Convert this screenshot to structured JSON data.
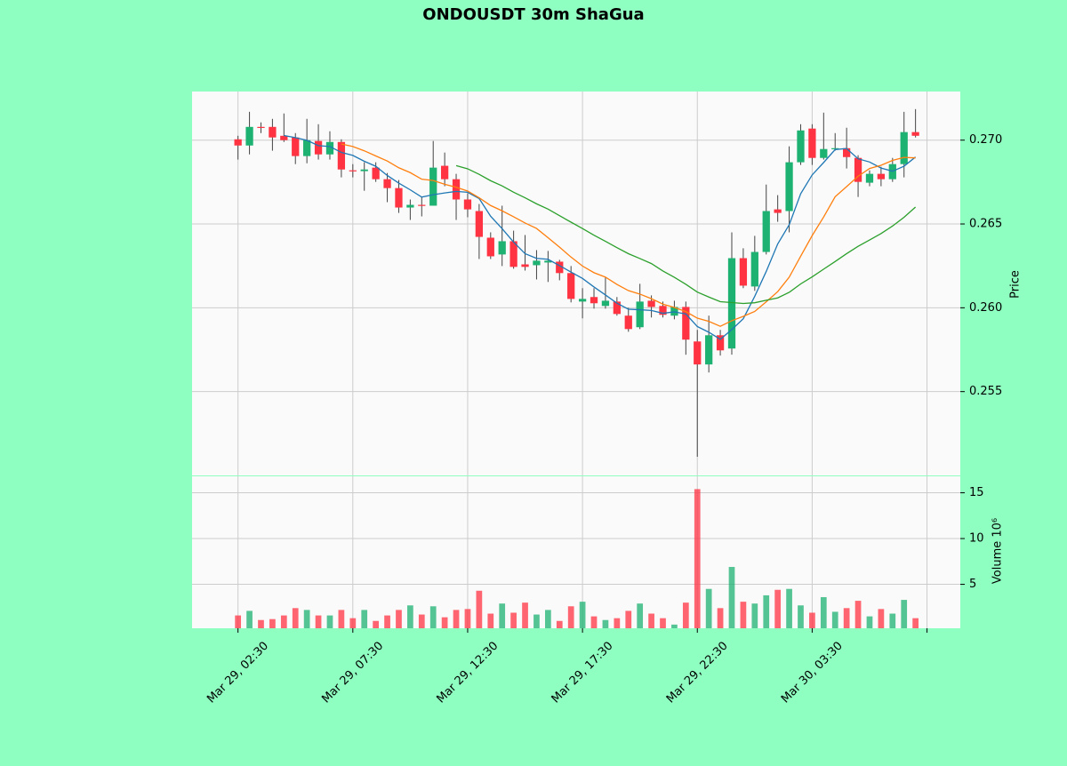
{
  "chart_data": {
    "type": "candlestick",
    "title": "ONDOUSDT 30m ShaGua",
    "ylabel": "Price",
    "volume_ylabel": "Volume  10⁶",
    "open": [
      0.27005,
      0.26968,
      0.27079,
      0.27079,
      0.27026,
      0.27016,
      0.26905,
      0.26995,
      0.26915,
      0.26989,
      0.2682,
      0.26815,
      0.26836,
      0.26767,
      0.26714,
      0.26598,
      0.26614,
      0.26609,
      0.26847,
      0.26767,
      0.26646,
      0.26577,
      0.26418,
      0.26318,
      0.26397,
      0.26259,
      0.26254,
      0.2627,
      0.26275,
      0.26207,
      0.26037,
      0.26064,
      0.26011,
      0.26037,
      0.25953,
      0.25884,
      0.26042,
      0.26011,
      0.25953,
      0.26005,
      0.25799,
      0.25662,
      0.25836,
      0.25757,
      0.26296,
      0.26127,
      0.26333,
      0.26587,
      0.26577,
      0.26868,
      0.27069,
      0.26894,
      0.26947,
      0.26952,
      0.26894,
      0.26746,
      0.26799,
      0.26767,
      0.26857,
      0.27048
    ],
    "high": [
      0.27026,
      0.27169,
      0.27106,
      0.27127,
      0.27159,
      0.27042,
      0.27127,
      0.27095,
      0.27053,
      0.27005,
      0.26857,
      0.26868,
      0.26868,
      0.26804,
      0.26762,
      0.26646,
      0.26661,
      0.26995,
      0.26926,
      0.26799,
      0.26683,
      0.26619,
      0.2645,
      0.26609,
      0.2646,
      0.26434,
      0.26344,
      0.26339,
      0.26286,
      0.26249,
      0.26117,
      0.26117,
      0.26185,
      0.26064,
      0.26,
      0.26143,
      0.26074,
      0.26037,
      0.26042,
      0.26037,
      0.25868,
      0.25953,
      0.25868,
      0.2645,
      0.26355,
      0.26429,
      0.26735,
      0.26672,
      0.26963,
      0.27095,
      0.27095,
      0.27164,
      0.27042,
      0.27074,
      0.2691,
      0.2682,
      0.26841,
      0.26894,
      0.27169,
      0.27185
    ],
    "low": [
      0.26884,
      0.26915,
      0.27042,
      0.26937,
      0.26989,
      0.26857,
      0.26862,
      0.26884,
      0.26884,
      0.26778,
      0.26778,
      0.26698,
      0.26751,
      0.2663,
      0.26566,
      0.26524,
      0.26545,
      0.26609,
      0.26725,
      0.26524,
      0.2654,
      0.26291,
      0.26291,
      0.26249,
      0.26233,
      0.26222,
      0.26169,
      0.26154,
      0.26164,
      0.26032,
      0.25937,
      0.25995,
      0.25995,
      0.25953,
      0.25857,
      0.25873,
      0.25942,
      0.25942,
      0.25931,
      0.2572,
      0.25111,
      0.25614,
      0.25715,
      0.2572,
      0.26117,
      0.26101,
      0.26318,
      0.26513,
      0.2645,
      0.26852,
      0.26852,
      0.26884,
      0.26937,
      0.26831,
      0.26661,
      0.26725,
      0.26725,
      0.26751,
      0.26778,
      0.27016
    ],
    "close": [
      0.26968,
      0.27079,
      0.27074,
      0.27016,
      0.27,
      0.26905,
      0.27,
      0.26915,
      0.26989,
      0.26825,
      0.26815,
      0.26825,
      0.26767,
      0.26714,
      0.26598,
      0.26614,
      0.26609,
      0.26836,
      0.26767,
      0.26646,
      0.26587,
      0.26423,
      0.26307,
      0.26397,
      0.26244,
      0.26244,
      0.26281,
      0.26281,
      0.26207,
      0.26053,
      0.26053,
      0.26027,
      0.26042,
      0.25963,
      0.25873,
      0.26037,
      0.26005,
      0.25958,
      0.26005,
      0.2581,
      0.25662,
      0.25836,
      0.25746,
      0.26296,
      0.26132,
      0.26333,
      0.26577,
      0.26566,
      0.26868,
      0.27058,
      0.26894,
      0.26947,
      0.26952,
      0.26899,
      0.26751,
      0.26799,
      0.26767,
      0.26857,
      0.27048,
      0.27026
    ],
    "volume": [
      1.6,
      2.1,
      1.1,
      1.2,
      1.6,
      2.4,
      2.2,
      1.6,
      1.6,
      2.2,
      1.3,
      2.2,
      1.0,
      1.6,
      2.2,
      2.7,
      1.7,
      2.6,
      1.4,
      2.2,
      2.3,
      4.3,
      1.8,
      2.9,
      1.9,
      3.0,
      1.7,
      2.2,
      1.0,
      2.6,
      3.1,
      1.5,
      1.1,
      1.3,
      2.1,
      2.9,
      1.8,
      1.3,
      0.6,
      3.0,
      15.4,
      4.5,
      2.4,
      6.9,
      3.1,
      2.9,
      3.8,
      4.4,
      4.5,
      2.7,
      1.9,
      3.6,
      2.0,
      2.4,
      3.2,
      1.5,
      2.3,
      1.8,
      3.3,
      1.3
    ],
    "up_color": "#1db272",
    "down_color": "#ff3341",
    "moving_averages": [
      {
        "period": 5,
        "color": "#1f77b4"
      },
      {
        "period": 10,
        "color": "#ff7f0e"
      },
      {
        "period": 20,
        "color": "#2ca02c"
      }
    ],
    "xlim": [
      -4,
      62.9
    ],
    "xticks": [
      {
        "value": 0,
        "label": "Mar 29, 02:30"
      },
      {
        "value": 10,
        "label": "Mar 29, 07:30"
      },
      {
        "value": 20,
        "label": "Mar 29, 12:30"
      },
      {
        "value": 30,
        "label": "Mar 29, 17:30"
      },
      {
        "value": 40,
        "label": "Mar 29, 22:30"
      },
      {
        "value": 50,
        "label": "Mar 30, 03:30"
      },
      {
        "value": 60,
        "label": null
      }
    ],
    "ylim": [
      0.25,
      0.2729
    ],
    "yticks": [
      {
        "value": 0.255,
        "label": "0.255"
      },
      {
        "value": 0.26,
        "label": "0.260"
      },
      {
        "value": 0.265,
        "label": "0.265"
      },
      {
        "value": 0.27,
        "label": "0.270"
      }
    ],
    "volume_ylim": [
      0.2,
      16.8
    ],
    "volume_yticks": [
      5,
      10,
      15
    ],
    "grid": true
  }
}
